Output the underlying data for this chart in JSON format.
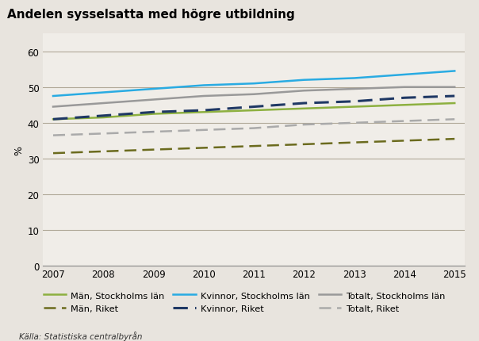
{
  "title": "Andelen sysselsatta med högre utbildning",
  "ylabel": "%",
  "source": "Källa: Statistiska centralbyrån",
  "years": [
    2007,
    2008,
    2009,
    2010,
    2011,
    2012,
    2013,
    2014,
    2015
  ],
  "series": {
    "man_stockholm": {
      "label": "Män, Stockholms län",
      "color": "#8db040",
      "linestyle": "solid",
      "linewidth": 1.8,
      "values": [
        41.0,
        41.5,
        42.5,
        43.0,
        43.5,
        44.0,
        44.5,
        45.0,
        45.5
      ]
    },
    "man_riket": {
      "label": "Män, Riket",
      "color": "#6b6b1e",
      "linestyle": "dashed",
      "linewidth": 1.8,
      "values": [
        31.5,
        32.0,
        32.5,
        33.0,
        33.5,
        34.0,
        34.5,
        35.0,
        35.5
      ]
    },
    "kvinnor_stockholm": {
      "label": "Kvinnor, Stockholms län",
      "color": "#29abe2",
      "linestyle": "solid",
      "linewidth": 1.8,
      "values": [
        47.5,
        48.5,
        49.5,
        50.5,
        51.0,
        52.0,
        52.5,
        53.5,
        54.5
      ]
    },
    "kvinnor_riket": {
      "label": "Kvinnor, Riket",
      "color": "#1f3864",
      "linestyle": "dashed",
      "linewidth": 2.2,
      "values": [
        41.0,
        42.0,
        43.0,
        43.5,
        44.5,
        45.5,
        46.0,
        47.0,
        47.5
      ]
    },
    "totalt_stockholm": {
      "label": "Totalt, Stockholms län",
      "color": "#999999",
      "linestyle": "solid",
      "linewidth": 1.8,
      "values": [
        44.5,
        45.5,
        46.5,
        47.5,
        48.0,
        49.0,
        49.5,
        50.0,
        50.0
      ]
    },
    "totalt_riket": {
      "label": "Totalt, Riket",
      "color": "#aaaaaa",
      "linestyle": "dashed",
      "linewidth": 1.8,
      "values": [
        36.5,
        37.0,
        37.5,
        38.0,
        38.5,
        39.5,
        40.0,
        40.5,
        41.0
      ]
    }
  },
  "series_order": [
    "man_stockholm",
    "man_riket",
    "kvinnor_stockholm",
    "kvinnor_riket",
    "totalt_stockholm",
    "totalt_riket"
  ],
  "ylim": [
    0,
    65
  ],
  "yticks": [
    0,
    10,
    20,
    30,
    40,
    50,
    60
  ],
  "xlim": [
    2007,
    2015
  ],
  "title_bg_color": "#a8a8a8",
  "plot_bg_color": "#f0ede8",
  "legend_bg_color": "#e8e4de"
}
